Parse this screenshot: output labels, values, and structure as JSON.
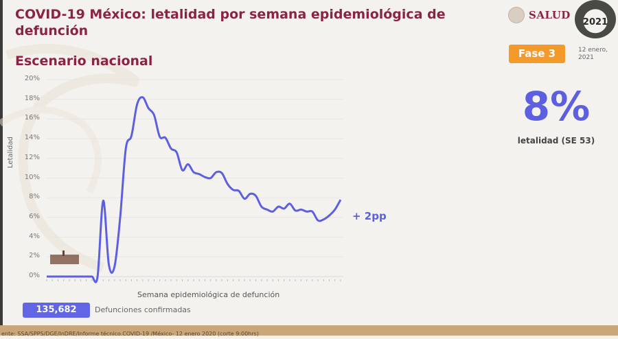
{
  "header": {
    "title": "COVID-19 México: letalidad por semana epidemiológica de defunción",
    "subtitle": "Escenario nacional",
    "logo_text": "SALUD",
    "badge_year": "2021",
    "phase": "Fase 3",
    "date": "12 enero, 2021"
  },
  "summary": {
    "lethality_value": "8%",
    "lethality_label": "letalidad (SE 53)",
    "change_annotation": "+ 2pp",
    "confirmed_deaths": "135,682",
    "confirmed_deaths_label": "Defunciones confirmadas"
  },
  "footer": {
    "source": "ente: SSA/SPPS/DGE/InDRE/Informe técnico.COVID-19 /México- 12 enero 2020 (corte 9:00hrs)"
  },
  "colors": {
    "title": "#8b2346",
    "line": "#5b5fe0",
    "phase_badge": "#f39a2b",
    "count_box": "#6266e6"
  },
  "chart_data": {
    "type": "line",
    "title": "COVID-19 México: letalidad por semana epidemiológica de defunción",
    "subtitle": "Escenario nacional",
    "xlabel": "Semana epidemiológica de defunción",
    "ylabel": "Letalidad",
    "ylim": [
      0,
      20
    ],
    "yticks": [
      "0%",
      "2%",
      "4%",
      "6%",
      "8%",
      "10%",
      "12%",
      "14%",
      "16%",
      "18%",
      "20%"
    ],
    "grid": true,
    "legend": "none",
    "series": [
      {
        "name": "Letalidad",
        "x": [
          1,
          2,
          3,
          4,
          5,
          6,
          7,
          8,
          9,
          10,
          11,
          12,
          13,
          14,
          15,
          16,
          17,
          18,
          19,
          20,
          21,
          22,
          23,
          24,
          25,
          26,
          27,
          28,
          29,
          30,
          31,
          32,
          33,
          34,
          35,
          36,
          37,
          38,
          39,
          40,
          41,
          42,
          43,
          44,
          45,
          46,
          47,
          48,
          49,
          50,
          51,
          52,
          53
        ],
        "values": [
          0,
          0,
          0,
          0,
          0,
          0,
          0,
          0,
          0,
          0,
          7.7,
          1.2,
          1.0,
          6.0,
          13.0,
          14.3,
          17.5,
          18.2,
          17.1,
          16.4,
          14.2,
          14.1,
          13.0,
          12.6,
          10.8,
          11.4,
          10.6,
          10.4,
          10.1,
          10.0,
          10.6,
          10.5,
          9.4,
          8.8,
          8.7,
          7.9,
          8.4,
          8.2,
          7.1,
          6.8,
          6.6,
          7.1,
          6.9,
          7.4,
          6.7,
          6.8,
          6.6,
          6.6,
          5.7,
          5.8,
          6.2,
          6.8,
          7.8
        ]
      }
    ],
    "annotations": [
      "+ 2pp"
    ]
  }
}
